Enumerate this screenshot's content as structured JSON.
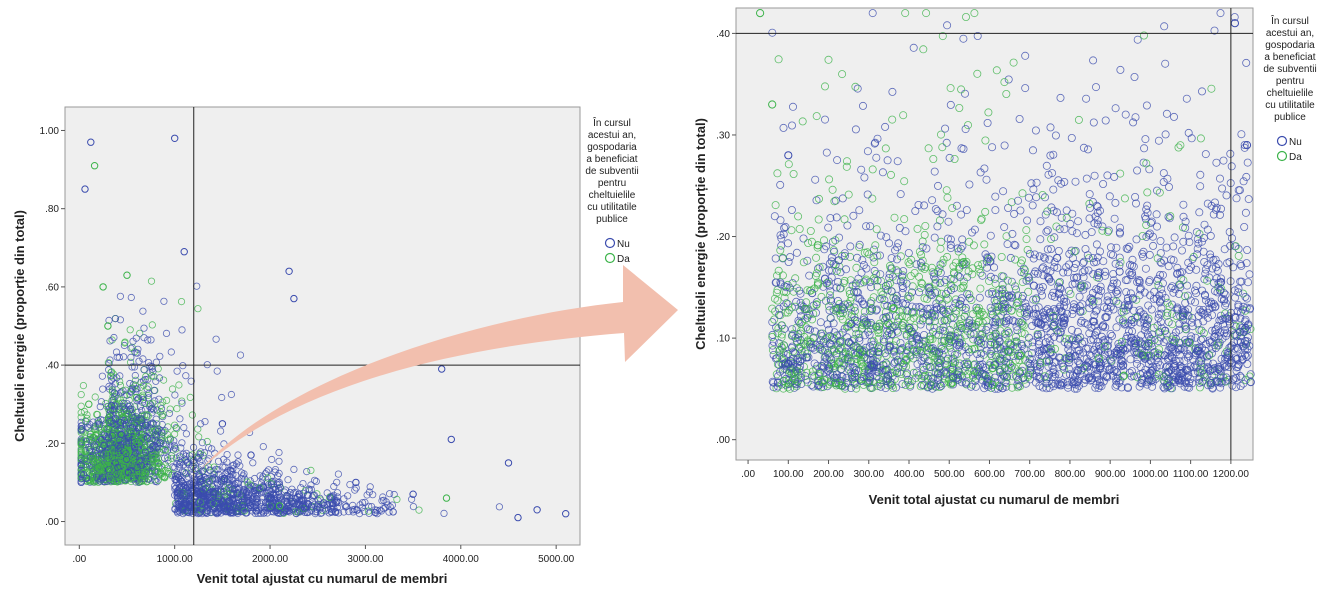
{
  "colors": {
    "nu": "#3b4cae",
    "da": "#3cb34a",
    "plot_bg": "#efefef",
    "arrow": "#f2bfae",
    "ref_line": "#222222"
  },
  "legend_lines": [
    "În cursul",
    "acestui an,",
    "gospodaria",
    "a beneficiat",
    "de subventii",
    "pentru",
    "cheltuielile",
    "cu utilitatile",
    "publice"
  ],
  "legend_items": [
    "Nu",
    "Da"
  ],
  "chart_data": [
    {
      "type": "scatter",
      "title": "",
      "xlabel": "Venit total ajustat cu numarul de membri",
      "ylabel": "Cheltuieli energie (proporție din total)",
      "x_ticks": [
        ".00",
        "1000.00",
        "2000.00",
        "3000.00",
        "4000.00",
        "5000.00"
      ],
      "y_ticks": [
        ".00",
        ".20",
        ".40",
        ".60",
        ".80",
        "1.00"
      ],
      "xlim": [
        -150,
        5250
      ],
      "ylim": [
        -0.06,
        1.06
      ],
      "reference_lines": {
        "x": 1200,
        "y": 0.4
      },
      "grid": false,
      "legend": "right",
      "series": [
        {
          "name": "Nu",
          "points": [
            [
              120,
              0.97
            ],
            [
              1000,
              0.98
            ],
            [
              2200,
              0.64
            ],
            [
              2250,
              0.57
            ],
            [
              1100,
              0.69
            ],
            [
              60,
              0.85
            ],
            [
              3800,
              0.39
            ],
            [
              4500,
              0.15
            ],
            [
              3900,
              0.21
            ],
            [
              5100,
              0.02
            ],
            [
              4800,
              0.03
            ],
            [
              4600,
              0.01
            ],
            [
              3500,
              0.07
            ],
            [
              2900,
              0.1
            ],
            [
              2700,
              0.05
            ],
            [
              1500,
              0.25
            ],
            [
              1800,
              0.17
            ]
          ]
        },
        {
          "name": "Da",
          "points": [
            [
              160,
              0.91
            ],
            [
              250,
              0.6
            ],
            [
              500,
              0.63
            ],
            [
              300,
              0.5
            ],
            [
              100,
              0.3
            ],
            [
              3850,
              0.06
            ],
            [
              2100,
              0.04
            ]
          ]
        }
      ]
    },
    {
      "type": "scatter",
      "title": "",
      "xlabel": "Venit total ajustat cu numarul de membri",
      "ylabel": "Cheltuieli energie (proporție din total)",
      "x_ticks": [
        ".00",
        "100.00",
        "200.00",
        "300.00",
        "400.00",
        "500.00",
        "600.00",
        "700.00",
        "800.00",
        "900.00",
        "1000.00",
        "1100.00",
        "1200.00"
      ],
      "y_ticks": [
        ".00",
        ".10",
        ".20",
        ".30",
        ".40"
      ],
      "xlim": [
        -30,
        1255
      ],
      "ylim": [
        -0.02,
        0.425
      ],
      "reference_lines": {
        "x": 1200,
        "y": 0.4
      },
      "grid": false,
      "legend": "right",
      "series": [
        {
          "name": "Nu",
          "points": [
            [
              1210,
              0.41
            ],
            [
              1240,
              0.29
            ],
            [
              100,
              0.28
            ]
          ]
        },
        {
          "name": "Da",
          "points": [
            [
              60,
              0.33
            ],
            [
              30,
              0.42
            ]
          ]
        }
      ]
    }
  ]
}
